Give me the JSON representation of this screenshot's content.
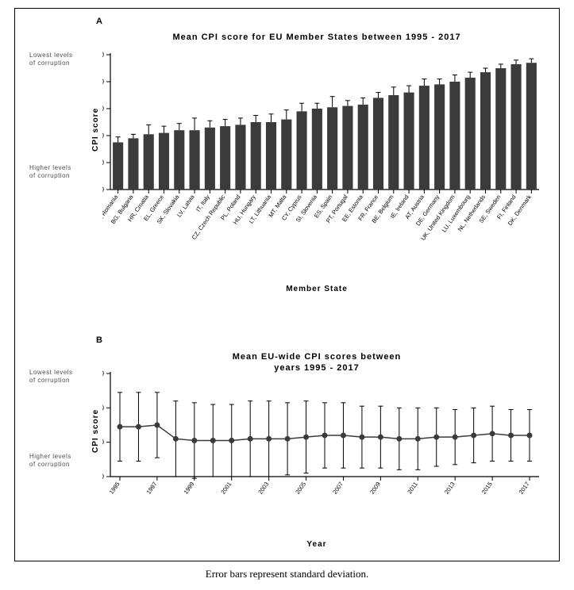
{
  "caption": "Error bars represent standard deviation.",
  "panelA": {
    "label": "A",
    "title": "Mean CPI score for EU Member States between 1995 - 2017",
    "type": "bar",
    "ylabel": "CPI score",
    "xlabel": "Member State",
    "note_top": "Lowest levels\nof corruption",
    "note_bottom": "Higher levels\nof corruption",
    "ylim": [
      0,
      100
    ],
    "ytick_step": 20,
    "bar_color": "#3b3b3b",
    "error_color": "#000000",
    "background_color": "#ffffff",
    "bar_width": 0.68,
    "categories": [
      "RO, Romania",
      "BG, Bulgaria",
      "HR, Croatia",
      "EL, Greece",
      "SK, Slovakia",
      "LV, Latvia",
      "IT, Italy",
      "CZ, Czech Republic",
      "PL, Poland",
      "HU, Hungary",
      "LT, Lithuania",
      "MT, Malta",
      "CY, Cyprus",
      "SI, Slovenia",
      "ES, Spain",
      "PT, Portugal",
      "EE, Estonia",
      "FR, France",
      "BE, Belgium",
      "IE, Ireland",
      "AT, Austria",
      "DE, Germany",
      "UK, United Kingdom",
      "LU, Luxembourg",
      "NL, Netherlands",
      "SE, Sweden",
      "FI, Finland",
      "DK, Denmark"
    ],
    "values": [
      35,
      38,
      41,
      42,
      44,
      44,
      46,
      47,
      48,
      50,
      50,
      52,
      58,
      60,
      61,
      62,
      63,
      68,
      70,
      72,
      77,
      78,
      80,
      83,
      87,
      90,
      93,
      94
    ],
    "errors": [
      4,
      3,
      7,
      5,
      5,
      9,
      5,
      5,
      5,
      5,
      6,
      7,
      6,
      4,
      8,
      4,
      5,
      4,
      6,
      5,
      5,
      4,
      5,
      4,
      3,
      3,
      3,
      3
    ]
  },
  "panelB": {
    "label": "B",
    "title": "Mean EU-wide CPI scores between\nyears 1995 - 2017",
    "type": "line",
    "ylabel": "CPI score",
    "xlabel": "Year",
    "note_top": "Lowest levels\nof corruption",
    "note_bottom": "Higher levels\nof corruption",
    "ylim": [
      40,
      100
    ],
    "ytick_step": 20,
    "line_color": "#3b3b3b",
    "marker": "circle",
    "marker_size": 3,
    "background_color": "#ffffff",
    "years": [
      1995,
      1996,
      1997,
      1998,
      1999,
      2000,
      2001,
      2002,
      2003,
      2004,
      2005,
      2006,
      2007,
      2008,
      2009,
      2010,
      2011,
      2012,
      2013,
      2014,
      2015,
      2016,
      2017
    ],
    "values": [
      69,
      69,
      70,
      62,
      61,
      61,
      61,
      62,
      62,
      62,
      63,
      64,
      64,
      63,
      63,
      62,
      62,
      63,
      63,
      64,
      65,
      64,
      64
    ],
    "errors": [
      20,
      20,
      19,
      22,
      22,
      21,
      21,
      22,
      22,
      21,
      21,
      19,
      19,
      18,
      18,
      18,
      18,
      17,
      16,
      16,
      16,
      15,
      15
    ],
    "xticks": [
      1995,
      1997,
      1999,
      2001,
      2003,
      2005,
      2007,
      2009,
      2011,
      2013,
      2015,
      2017
    ]
  }
}
